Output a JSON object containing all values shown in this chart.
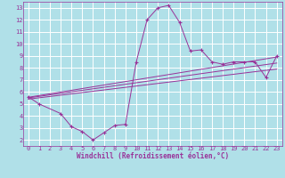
{
  "background_color": "#b0e0e8",
  "grid_color": "#ffffff",
  "line_color": "#993399",
  "marker_color": "#993399",
  "xlabel": "Windchill (Refroidissement éolien,°C)",
  "xlim": [
    -0.5,
    23.5
  ],
  "ylim": [
    1.5,
    13.5
  ],
  "xticks": [
    0,
    1,
    2,
    3,
    4,
    5,
    6,
    7,
    8,
    9,
    10,
    11,
    12,
    13,
    14,
    15,
    16,
    17,
    18,
    19,
    20,
    21,
    22,
    23
  ],
  "yticks": [
    2,
    3,
    4,
    5,
    6,
    7,
    8,
    9,
    10,
    11,
    12,
    13
  ],
  "series1_x": [
    0,
    1,
    3,
    4,
    5,
    6,
    7,
    8,
    9,
    10,
    11,
    12,
    13,
    14,
    15,
    16,
    17,
    18,
    19,
    20,
    21,
    22,
    23
  ],
  "series1_y": [
    5.6,
    5.0,
    4.2,
    3.1,
    2.7,
    2.0,
    2.6,
    3.2,
    3.3,
    8.5,
    12.0,
    13.0,
    13.2,
    11.8,
    9.4,
    9.5,
    8.5,
    8.3,
    8.5,
    8.5,
    8.5,
    7.2,
    9.0
  ],
  "line2_x": [
    0,
    23
  ],
  "line2_y": [
    5.55,
    8.9
  ],
  "line3_x": [
    0,
    23
  ],
  "line3_y": [
    5.5,
    8.4
  ],
  "line4_x": [
    0,
    23
  ],
  "line4_y": [
    5.4,
    7.9
  ]
}
